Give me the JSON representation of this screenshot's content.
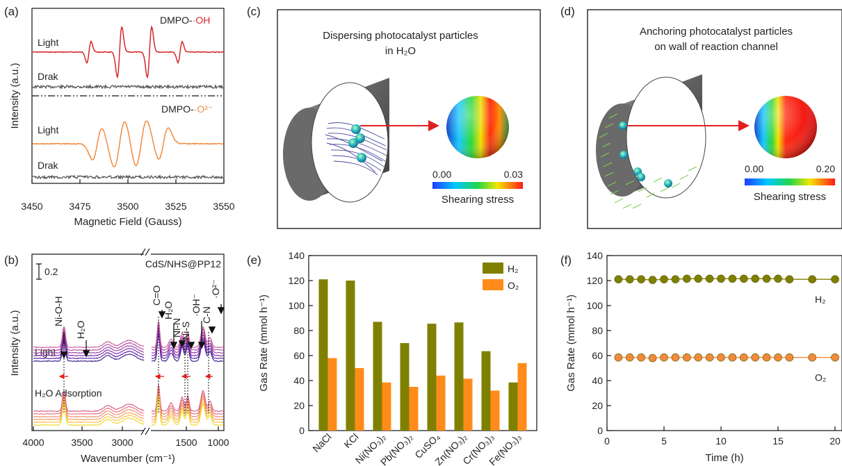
{
  "panel_labels": {
    "a": "(a)",
    "b": "(b)",
    "c": "(c)",
    "d": "(d)",
    "e": "(e)",
    "f": "(f)"
  },
  "panel_a": {
    "ylabel": "Intensity (a.u.)",
    "xlabel": "Magnetic Field (Gauss)",
    "xticks": [
      "3450",
      "3475",
      "3500",
      "3525",
      "3550"
    ],
    "oh_label_prefix": "DMPO-",
    "oh_label_suffix": "·OH",
    "o2_label_prefix": "DMPO-",
    "o2_label_suffix": "·O²⁻",
    "light": "Light",
    "dark": "Drak",
    "colors": {
      "oh": "#d62728",
      "o2": "#f28a3c",
      "dark": "#555555"
    }
  },
  "panel_b": {
    "ylabel": "Intensity (a.u.)",
    "xlabel": "Wavenumber (cm⁻¹)",
    "xticks": [
      "4000",
      "3500",
      "3000",
      "1500",
      "1000"
    ],
    "scale": "0.2",
    "sample": "CdS/NHS@PP12",
    "light": "Light",
    "adsorption": "H₂O   Adsorption",
    "annotations": [
      "Ni-O-H",
      "H₂O",
      "C=O",
      "H₂O",
      "Ni-N",
      "Ni-S",
      "·OH⁻",
      "C-N",
      "·O²⁻"
    ]
  },
  "panel_c": {
    "title_line1": "Dispersing photocatalyst particles",
    "title_line2": "in H₂O",
    "scale_min": "0.00",
    "scale_max": "0.03",
    "scale_label": "Shearing stress"
  },
  "panel_d": {
    "title_line1": "Anchoring photocatalyst particles",
    "title_line2": "on wall of reaction channel",
    "scale_min": "0.00",
    "scale_max": "0.20",
    "scale_label": "Shearing stress"
  },
  "chart_data": [
    {
      "type": "bar",
      "panel": "e",
      "ylabel": "Gas Rate (mmol h⁻¹)",
      "ylim": [
        0,
        140
      ],
      "yticks": [
        "0",
        "20",
        "40",
        "60",
        "80",
        "100",
        "120",
        "140"
      ],
      "categories": [
        "NaCl",
        "KCl",
        "Ni(NO₃)₂",
        "Pb(NO₃)₂",
        "CuSO₄",
        "Zn(NO₃)₂",
        "Cr(NO₃)₃",
        "Fe(NO₃)₃"
      ],
      "series": [
        {
          "name": "H₂",
          "color": "#808000",
          "values": [
            121,
            120,
            87,
            70,
            85.5,
            86.5,
            63.5,
            38.5
          ]
        },
        {
          "name": "O₂",
          "color": "#ff8c1a",
          "values": [
            58,
            50,
            38.5,
            35,
            44,
            41.5,
            32,
            54
          ]
        }
      ],
      "legend": "top-right"
    },
    {
      "type": "line",
      "panel": "f",
      "xlabel": "Time (h)",
      "ylabel": "Gas Rate (mmol h⁻¹)",
      "xlim": [
        0,
        20
      ],
      "ylim": [
        0,
        140
      ],
      "xticks": [
        "0",
        "5",
        "10",
        "15",
        "20"
      ],
      "yticks": [
        "0",
        "20",
        "40",
        "60",
        "80",
        "100",
        "120",
        "140"
      ],
      "x": [
        1,
        2,
        3,
        4,
        5,
        6,
        7,
        8,
        9,
        10,
        11,
        12,
        13,
        14,
        15,
        16,
        18,
        20
      ],
      "series": [
        {
          "name": "H₂",
          "color": "#808000",
          "values": [
            121,
            121,
            121,
            120.5,
            121,
            121,
            121.5,
            121.5,
            121.5,
            121.5,
            121.5,
            121.5,
            121.5,
            121.5,
            121.5,
            121,
            121,
            121
          ]
        },
        {
          "name": "O₂",
          "color": "#f28a3c",
          "values": [
            58.5,
            58.5,
            58.5,
            58,
            58.5,
            58.5,
            58.5,
            58.5,
            58.5,
            58.5,
            58.5,
            58.5,
            58.5,
            58.5,
            58.5,
            58.5,
            58.5,
            58.5
          ]
        }
      ]
    }
  ]
}
